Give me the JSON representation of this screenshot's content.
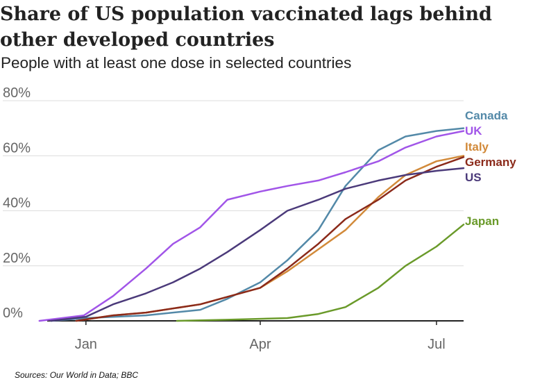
{
  "title": "Share of US population vaccinated lags behind other developed countries",
  "subtitle": "People with at least one dose in selected countries",
  "source": "Sources: Our World in Data; BBC",
  "chart_data": {
    "type": "line",
    "title": "Share of US population vaccinated lags behind other developed countries",
    "subtitle": "People with at least one dose in selected countries",
    "xlabel": "",
    "ylabel": "",
    "x_ticks": [
      "Jan",
      "Apr",
      "Jul"
    ],
    "y_ticks": [
      "0%",
      "20%",
      "40%",
      "60%",
      "80%"
    ],
    "ylim": [
      0,
      80
    ],
    "xlim": [
      "2020-12-12",
      "2021-07-15"
    ],
    "grid": "horizontal",
    "legend": "direct labels at line ends (right)",
    "series": [
      {
        "name": "Canada",
        "color": "#5389a8",
        "x": [
          "2020-12-14",
          "2021-01-01",
          "2021-02-01",
          "2021-03-01",
          "2021-03-15",
          "2021-04-01",
          "2021-04-15",
          "2021-05-01",
          "2021-05-15",
          "2021-06-01",
          "2021-06-15",
          "2021-07-01",
          "2021-07-15"
        ],
        "y": [
          0,
          1,
          2,
          4,
          8,
          14,
          22,
          33,
          49,
          62,
          67,
          69,
          70
        ]
      },
      {
        "name": "UK",
        "color": "#a155e8",
        "x": [
          "2020-12-08",
          "2020-12-31",
          "2021-01-15",
          "2021-02-01",
          "2021-02-15",
          "2021-03-01",
          "2021-03-15",
          "2021-04-01",
          "2021-04-15",
          "2021-05-01",
          "2021-05-15",
          "2021-06-01",
          "2021-06-15",
          "2021-07-01",
          "2021-07-15"
        ],
        "y": [
          0,
          2,
          9,
          19,
          28,
          34,
          44,
          47,
          49,
          51,
          54,
          58,
          63,
          67,
          69
        ]
      },
      {
        "name": "Italy",
        "color": "#d28a3a",
        "x": [
          "2020-12-27",
          "2021-01-15",
          "2021-02-01",
          "2021-03-01",
          "2021-04-01",
          "2021-04-15",
          "2021-05-01",
          "2021-05-15",
          "2021-06-01",
          "2021-06-15",
          "2021-07-01",
          "2021-07-15"
        ],
        "y": [
          0,
          2,
          3,
          6,
          12,
          18,
          26,
          33,
          45,
          53,
          58,
          60
        ]
      },
      {
        "name": "Germany",
        "color": "#8b2a1a",
        "x": [
          "2020-12-27",
          "2021-01-15",
          "2021-02-01",
          "2021-03-01",
          "2021-04-01",
          "2021-04-15",
          "2021-05-01",
          "2021-05-15",
          "2021-06-01",
          "2021-06-15",
          "2021-07-01",
          "2021-07-15"
        ],
        "y": [
          0,
          2,
          3,
          6,
          12,
          19,
          28,
          37,
          44,
          51,
          56,
          59.5
        ]
      },
      {
        "name": "US",
        "color": "#4b3a7a",
        "x": [
          "2020-12-14",
          "2021-01-01",
          "2021-01-15",
          "2021-02-01",
          "2021-02-15",
          "2021-03-01",
          "2021-03-15",
          "2021-04-01",
          "2021-04-15",
          "2021-05-01",
          "2021-05-15",
          "2021-06-01",
          "2021-06-15",
          "2021-07-01",
          "2021-07-15"
        ],
        "y": [
          0,
          1.5,
          6,
          10,
          14,
          19,
          25,
          33,
          40,
          44,
          48,
          51,
          53,
          54.5,
          55.5
        ]
      },
      {
        "name": "Japan",
        "color": "#6a9a2a",
        "x": [
          "2021-02-17",
          "2021-03-15",
          "2021-04-15",
          "2021-05-01",
          "2021-05-15",
          "2021-06-01",
          "2021-06-15",
          "2021-07-01",
          "2021-07-15"
        ],
        "y": [
          0,
          0.4,
          1,
          2.5,
          5,
          12,
          20,
          27,
          35
        ]
      }
    ]
  }
}
